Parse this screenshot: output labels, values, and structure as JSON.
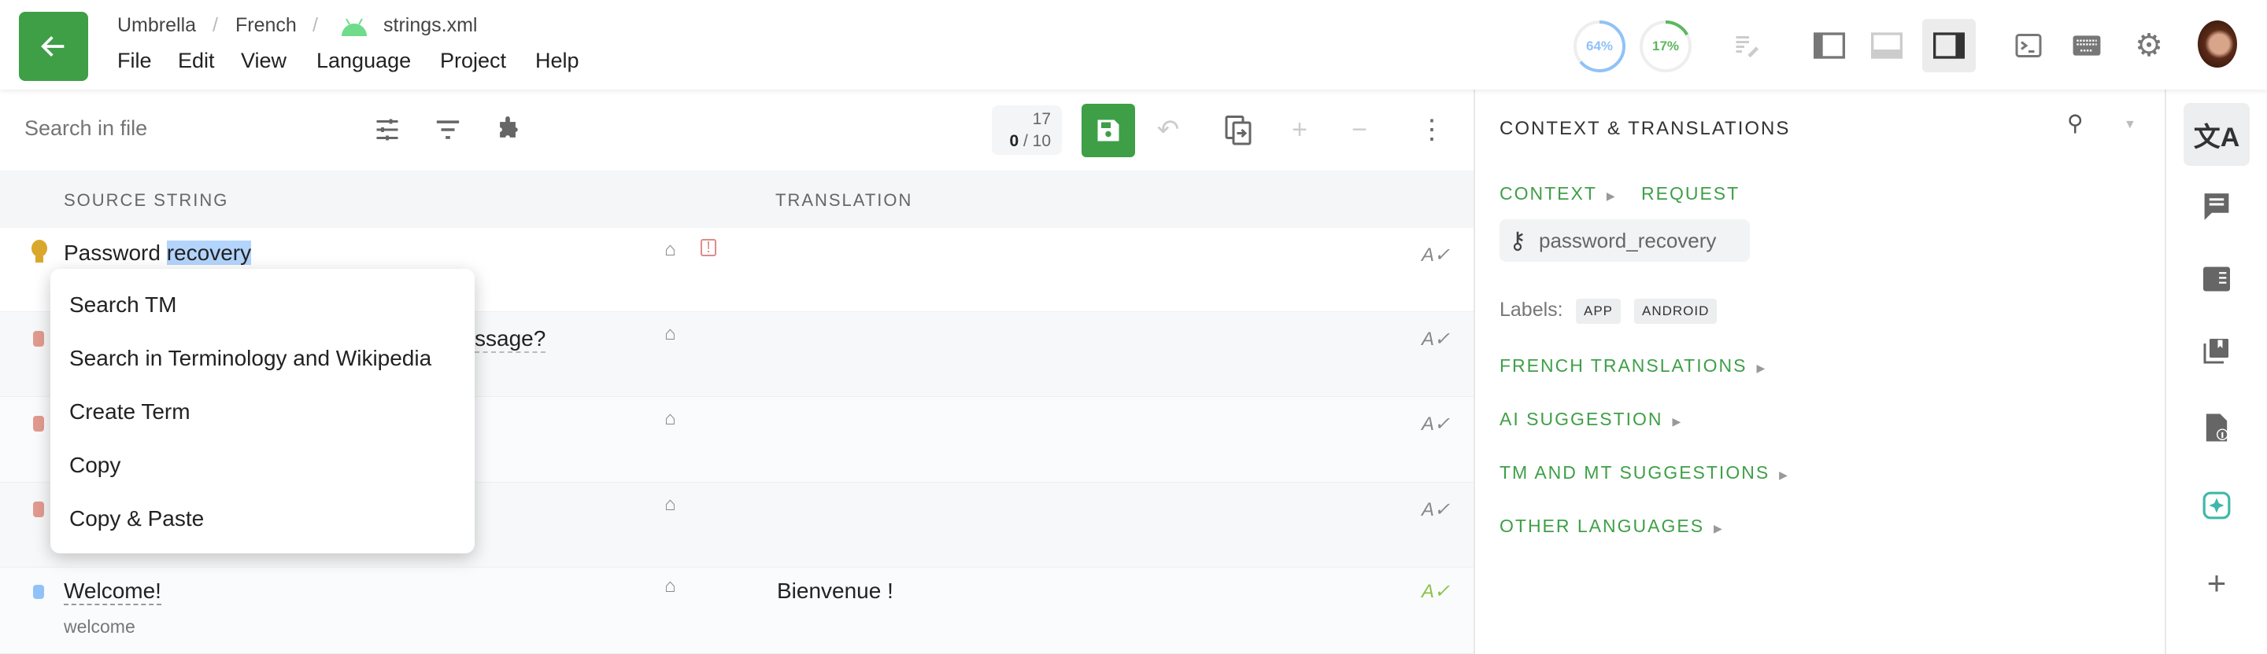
{
  "header": {
    "breadcrumb": [
      "Umbrella",
      "French",
      "strings.xml"
    ],
    "breadcrumb_sep": "/",
    "menu": [
      "File",
      "Edit",
      "View",
      "Language",
      "Project",
      "Help"
    ],
    "progress": [
      {
        "label": "64%",
        "value": 64,
        "color": "#90c2f9"
      },
      {
        "label": "17%",
        "value": 17,
        "color": "#5cb85c"
      }
    ],
    "icons": [
      "proofread-icon",
      "layout-sidebar-left-icon",
      "layout-bottom-icon",
      "layout-sidebar-right-icon",
      "terminal-icon",
      "keyboard-icon",
      "gear-icon",
      "avatar"
    ],
    "accent": "#3e9f47"
  },
  "toolbar": {
    "search_placeholder": "Search in file",
    "counter_total": "17",
    "counter_done": "0",
    "counter_page": "/ 10"
  },
  "table": {
    "headers": {
      "source": "SOURCE STRING",
      "translation": "TRANSLATION"
    },
    "rows": [
      {
        "source": "Password ",
        "highlight": "recovery",
        "translation": "",
        "status": "suggestion"
      },
      {
        "source": "ssage?",
        "translation": "",
        "status": "untranslated"
      },
      {
        "source": "",
        "translation": "",
        "status": "untranslated"
      },
      {
        "source": "",
        "translation": "",
        "status": "untranslated"
      },
      {
        "source": "Welcome!",
        "key": "welcome",
        "translation": "Bienvenue !",
        "status": "translated"
      }
    ]
  },
  "context_menu": [
    "Search TM",
    "Search in Terminology and Wikipedia",
    "Create Term",
    "Copy",
    "Copy & Paste"
  ],
  "right_panel": {
    "title": "CONTEXT & TRANSLATIONS",
    "context": "CONTEXT",
    "request": "REQUEST",
    "key": "password_recovery",
    "labels_title": "Labels:",
    "labels": [
      "APP",
      "ANDROID"
    ],
    "sections": [
      "FRENCH TRANSLATIONS",
      "AI SUGGESTION",
      "TM AND MT SUGGESTIONS",
      "OTHER LANGUAGES"
    ]
  },
  "sidebar": {
    "icons": [
      "translate-icon",
      "comments-icon",
      "glossary-icon",
      "tm-icon",
      "file-info-icon",
      "ai-icon",
      "add-icon"
    ]
  }
}
